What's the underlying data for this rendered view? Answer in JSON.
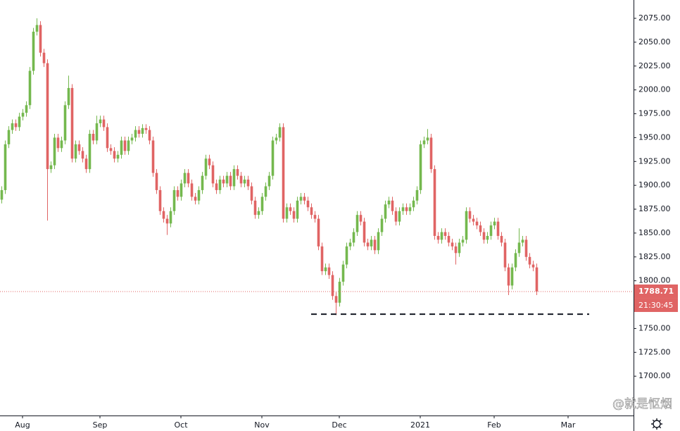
{
  "chart_data": {
    "type": "candlestick",
    "up_color": "#74b84e",
    "down_color": "#e06464",
    "candles": {
      "open": [
        1885,
        1895,
        1943,
        1958,
        1965,
        1961,
        1972,
        1976,
        1984,
        2020,
        2061,
        2068,
        2039,
        2028,
        1917,
        1921,
        1950,
        1939,
        1947,
        1984,
        2002,
        1928,
        1943,
        1936,
        1928,
        1917,
        1954,
        1947,
        1965,
        1969,
        1961,
        1939,
        1936,
        1928,
        1932,
        1947,
        1936,
        1947,
        1950,
        1958,
        1954,
        1960,
        1958,
        1947,
        1913,
        1895,
        1873,
        1865,
        1860,
        1873,
        1895,
        1888,
        1902,
        1913,
        1902,
        1888,
        1884,
        1895,
        1910,
        1928,
        1921,
        1902,
        1895,
        1906,
        1902,
        1910,
        1899,
        1917,
        1910,
        1902,
        1906,
        1899,
        1884,
        1869,
        1873,
        1888,
        1899,
        1910,
        1947,
        1950,
        1961,
        1865,
        1877,
        1873,
        1865,
        1884,
        1888,
        1884,
        1877,
        1869,
        1865,
        1836,
        1810,
        1814,
        1806,
        1784,
        1777,
        1799,
        1817,
        1836,
        1840,
        1851,
        1869,
        1862,
        1840,
        1836,
        1843,
        1832,
        1851,
        1865,
        1880,
        1884,
        1873,
        1862,
        1873,
        1877,
        1873,
        1877,
        1884,
        1895,
        1943,
        1947,
        1950,
        1917,
        1847,
        1843,
        1851,
        1847,
        1840,
        1836,
        1829,
        1840,
        1843,
        1873,
        1865,
        1862,
        1858,
        1851,
        1843,
        1847,
        1858,
        1862,
        1847,
        1840,
        1814,
        1795,
        1814,
        1829,
        1840,
        1843,
        1825,
        1817,
        1814
      ],
      "high": [
        1899,
        1947,
        1962,
        1969,
        1969,
        1976,
        1980,
        1988,
        2024,
        2065,
        2075,
        2072,
        2043,
        2032,
        1925,
        1954,
        1954,
        1951,
        1988,
        2015,
        2006,
        1947,
        1947,
        1940,
        1932,
        1958,
        1958,
        1973,
        1973,
        1973,
        1965,
        1943,
        1940,
        1936,
        1951,
        1951,
        1951,
        1954,
        1962,
        1962,
        1964,
        1964,
        1962,
        1951,
        1917,
        1899,
        1877,
        1869,
        1877,
        1899,
        1899,
        1906,
        1917,
        1917,
        1906,
        1892,
        1899,
        1914,
        1932,
        1932,
        1925,
        1906,
        1910,
        1910,
        1914,
        1914,
        1921,
        1921,
        1914,
        1910,
        1910,
        1903,
        1888,
        1877,
        1892,
        1903,
        1914,
        1951,
        1954,
        1965,
        1965,
        1881,
        1881,
        1877,
        1888,
        1892,
        1892,
        1888,
        1881,
        1873,
        1869,
        1840,
        1818,
        1818,
        1810,
        1788,
        1803,
        1821,
        1840,
        1844,
        1855,
        1873,
        1873,
        1866,
        1844,
        1847,
        1847,
        1855,
        1869,
        1884,
        1888,
        1888,
        1877,
        1877,
        1881,
        1881,
        1881,
        1888,
        1899,
        1947,
        1951,
        1959,
        1954,
        1921,
        1851,
        1855,
        1855,
        1851,
        1844,
        1840,
        1844,
        1847,
        1877,
        1877,
        1869,
        1866,
        1862,
        1855,
        1851,
        1862,
        1866,
        1866,
        1851,
        1844,
        1818,
        1818,
        1833,
        1855,
        1847,
        1847,
        1829,
        1821,
        1818
      ],
      "low": [
        1881,
        1891,
        1939,
        1954,
        1957,
        1957,
        1968,
        1972,
        1980,
        2016,
        2057,
        2035,
        2024,
        1863,
        1913,
        1917,
        1935,
        1935,
        1943,
        1980,
        1924,
        1924,
        1932,
        1924,
        1913,
        1913,
        1943,
        1943,
        1961,
        1957,
        1935,
        1932,
        1924,
        1924,
        1928,
        1932,
        1932,
        1943,
        1946,
        1950,
        1950,
        1954,
        1943,
        1909,
        1891,
        1869,
        1861,
        1848,
        1856,
        1869,
        1884,
        1884,
        1898,
        1898,
        1884,
        1880,
        1880,
        1891,
        1906,
        1917,
        1898,
        1891,
        1891,
        1898,
        1898,
        1895,
        1895,
        1906,
        1898,
        1898,
        1895,
        1880,
        1865,
        1865,
        1869,
        1884,
        1895,
        1906,
        1943,
        1946,
        1861,
        1861,
        1869,
        1861,
        1861,
        1880,
        1880,
        1873,
        1865,
        1861,
        1832,
        1806,
        1806,
        1802,
        1780,
        1764,
        1773,
        1795,
        1813,
        1832,
        1836,
        1847,
        1858,
        1836,
        1832,
        1832,
        1828,
        1828,
        1847,
        1861,
        1876,
        1869,
        1858,
        1858,
        1869,
        1869,
        1869,
        1873,
        1880,
        1891,
        1939,
        1943,
        1913,
        1843,
        1839,
        1839,
        1843,
        1836,
        1832,
        1817,
        1825,
        1836,
        1839,
        1861,
        1858,
        1854,
        1847,
        1839,
        1839,
        1843,
        1854,
        1843,
        1836,
        1810,
        1785,
        1791,
        1810,
        1825,
        1836,
        1821,
        1813,
        1810,
        1785
      ],
      "close": [
        1895,
        1943,
        1958,
        1965,
        1961,
        1972,
        1976,
        1984,
        2020,
        2061,
        2068,
        2039,
        2028,
        1917,
        1921,
        1950,
        1939,
        1947,
        1984,
        2002,
        1928,
        1943,
        1936,
        1928,
        1917,
        1954,
        1947,
        1965,
        1969,
        1961,
        1939,
        1936,
        1928,
        1932,
        1947,
        1936,
        1947,
        1950,
        1958,
        1954,
        1960,
        1958,
        1947,
        1913,
        1895,
        1873,
        1865,
        1860,
        1873,
        1895,
        1888,
        1902,
        1913,
        1902,
        1888,
        1884,
        1895,
        1910,
        1928,
        1921,
        1902,
        1895,
        1906,
        1902,
        1910,
        1899,
        1917,
        1910,
        1902,
        1906,
        1899,
        1884,
        1869,
        1873,
        1888,
        1899,
        1910,
        1947,
        1950,
        1961,
        1865,
        1877,
        1873,
        1865,
        1884,
        1888,
        1884,
        1877,
        1869,
        1865,
        1836,
        1810,
        1814,
        1806,
        1784,
        1777,
        1799,
        1817,
        1836,
        1840,
        1851,
        1869,
        1862,
        1840,
        1836,
        1843,
        1832,
        1851,
        1865,
        1880,
        1884,
        1873,
        1862,
        1873,
        1877,
        1873,
        1877,
        1884,
        1895,
        1943,
        1947,
        1950,
        1917,
        1847,
        1843,
        1851,
        1847,
        1840,
        1836,
        1829,
        1840,
        1843,
        1873,
        1865,
        1862,
        1858,
        1851,
        1843,
        1847,
        1858,
        1862,
        1847,
        1840,
        1814,
        1795,
        1814,
        1829,
        1840,
        1843,
        1825,
        1817,
        1814,
        1788.71
      ]
    },
    "xlim": [
      -0.4,
      179.6
    ],
    "xticks": [
      {
        "value": 6,
        "label": "Aug"
      },
      {
        "value": 28,
        "label": "Sep"
      },
      {
        "value": 51,
        "label": "Oct"
      },
      {
        "value": 74,
        "label": "Nov"
      },
      {
        "value": 96,
        "label": "Dec"
      },
      {
        "value": 119,
        "label": "2021"
      },
      {
        "value": 140,
        "label": "Feb"
      },
      {
        "value": 161,
        "label": "Mar"
      }
    ],
    "ylim": [
      1658.8,
      2094.2
    ],
    "yticks": [
      {
        "value": 1700,
        "label": "1700.00"
      },
      {
        "value": 1725,
        "label": "1725.00"
      },
      {
        "value": 1750,
        "label": "1750.00"
      },
      {
        "value": 1775,
        "label": "1775.00"
      },
      {
        "value": 1800,
        "label": "1800.00"
      },
      {
        "value": 1825,
        "label": "1825.00"
      },
      {
        "value": 1850,
        "label": "1850.00"
      },
      {
        "value": 1875,
        "label": "1875.00"
      },
      {
        "value": 1900,
        "label": "1900.00"
      },
      {
        "value": 1925,
        "label": "1925.00"
      },
      {
        "value": 1950,
        "label": "1950.00"
      },
      {
        "value": 1975,
        "label": "1975.00"
      },
      {
        "value": 2000,
        "label": "2000.00"
      },
      {
        "value": 2025,
        "label": "2025.00"
      },
      {
        "value": 2050,
        "label": "2050.00"
      },
      {
        "value": 2075,
        "label": "2075.00"
      }
    ],
    "grid": false,
    "support_line": {
      "value": 1765,
      "x": [
        88,
        167
      ]
    },
    "countdown": "21:30:45",
    "watermark": "@就是怄烟"
  }
}
